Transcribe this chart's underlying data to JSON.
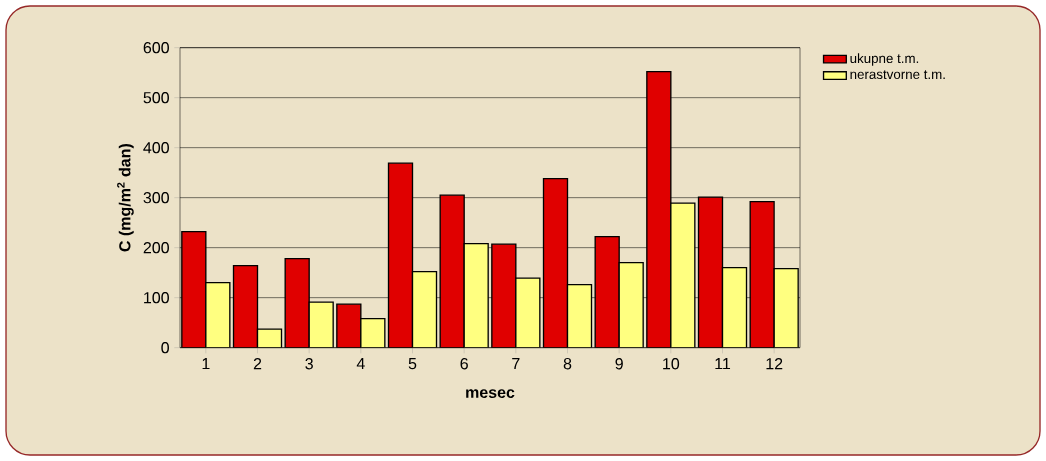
{
  "chart_data": {
    "type": "bar",
    "xlabel": "mesec",
    "ylabel": "C (mg/m$^{2}$ dan)",
    "categories": [
      "1",
      "2",
      "3",
      "4",
      "5",
      "6",
      "7",
      "8",
      "9",
      "10",
      "11",
      "12"
    ],
    "series": [
      {
        "name": "ukupne t.m.",
        "color": "#e00000",
        "values": [
          232,
          164,
          178,
          87,
          369,
          305,
          207,
          338,
          222,
          552,
          301,
          292
        ]
      },
      {
        "name": "nerastvorne t.m.",
        "color": "#ffff80",
        "values": [
          130,
          37,
          91,
          58,
          152,
          208,
          139,
          126,
          170,
          289,
          160,
          158
        ]
      }
    ],
    "ylim": [
      0,
      600
    ],
    "yticks": [
      0,
      100,
      200,
      300,
      400,
      500,
      600
    ],
    "grid": "y",
    "legend": "top right"
  }
}
